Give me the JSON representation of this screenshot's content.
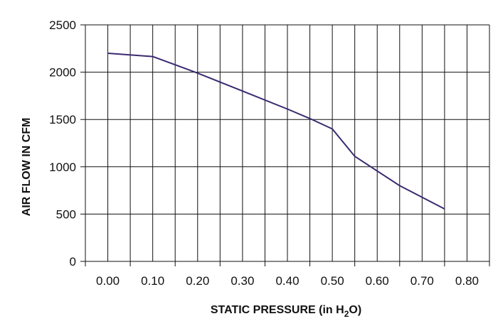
{
  "chart_data": {
    "type": "line",
    "title": "",
    "xlabel": {
      "text": "STATIC PRESSURE (in H",
      "sub": "2",
      "tail": "O)"
    },
    "ylabel": "AIR FLOW IN CFM",
    "xlim": [
      -0.05,
      0.85
    ],
    "ylim": [
      0,
      2500
    ],
    "grid": true,
    "x_ticks": [
      "0.00",
      "0.10",
      "0.20",
      "0.30",
      "0.40",
      "0.50",
      "0.60",
      "0.70",
      "0.80"
    ],
    "y_ticks": [
      "0",
      "500",
      "1000",
      "1500",
      "2000",
      "2500"
    ],
    "series": [
      {
        "x": [
          0.0,
          0.1,
          0.2,
          0.3,
          0.4,
          0.45,
          0.5,
          0.55,
          0.65,
          0.75
        ],
        "y": [
          2200,
          2165,
          1990,
          1800,
          1610,
          1510,
          1400,
          1110,
          800,
          555
        ]
      }
    ],
    "line_color": "#3a2a70",
    "grid_color": "#111111"
  }
}
